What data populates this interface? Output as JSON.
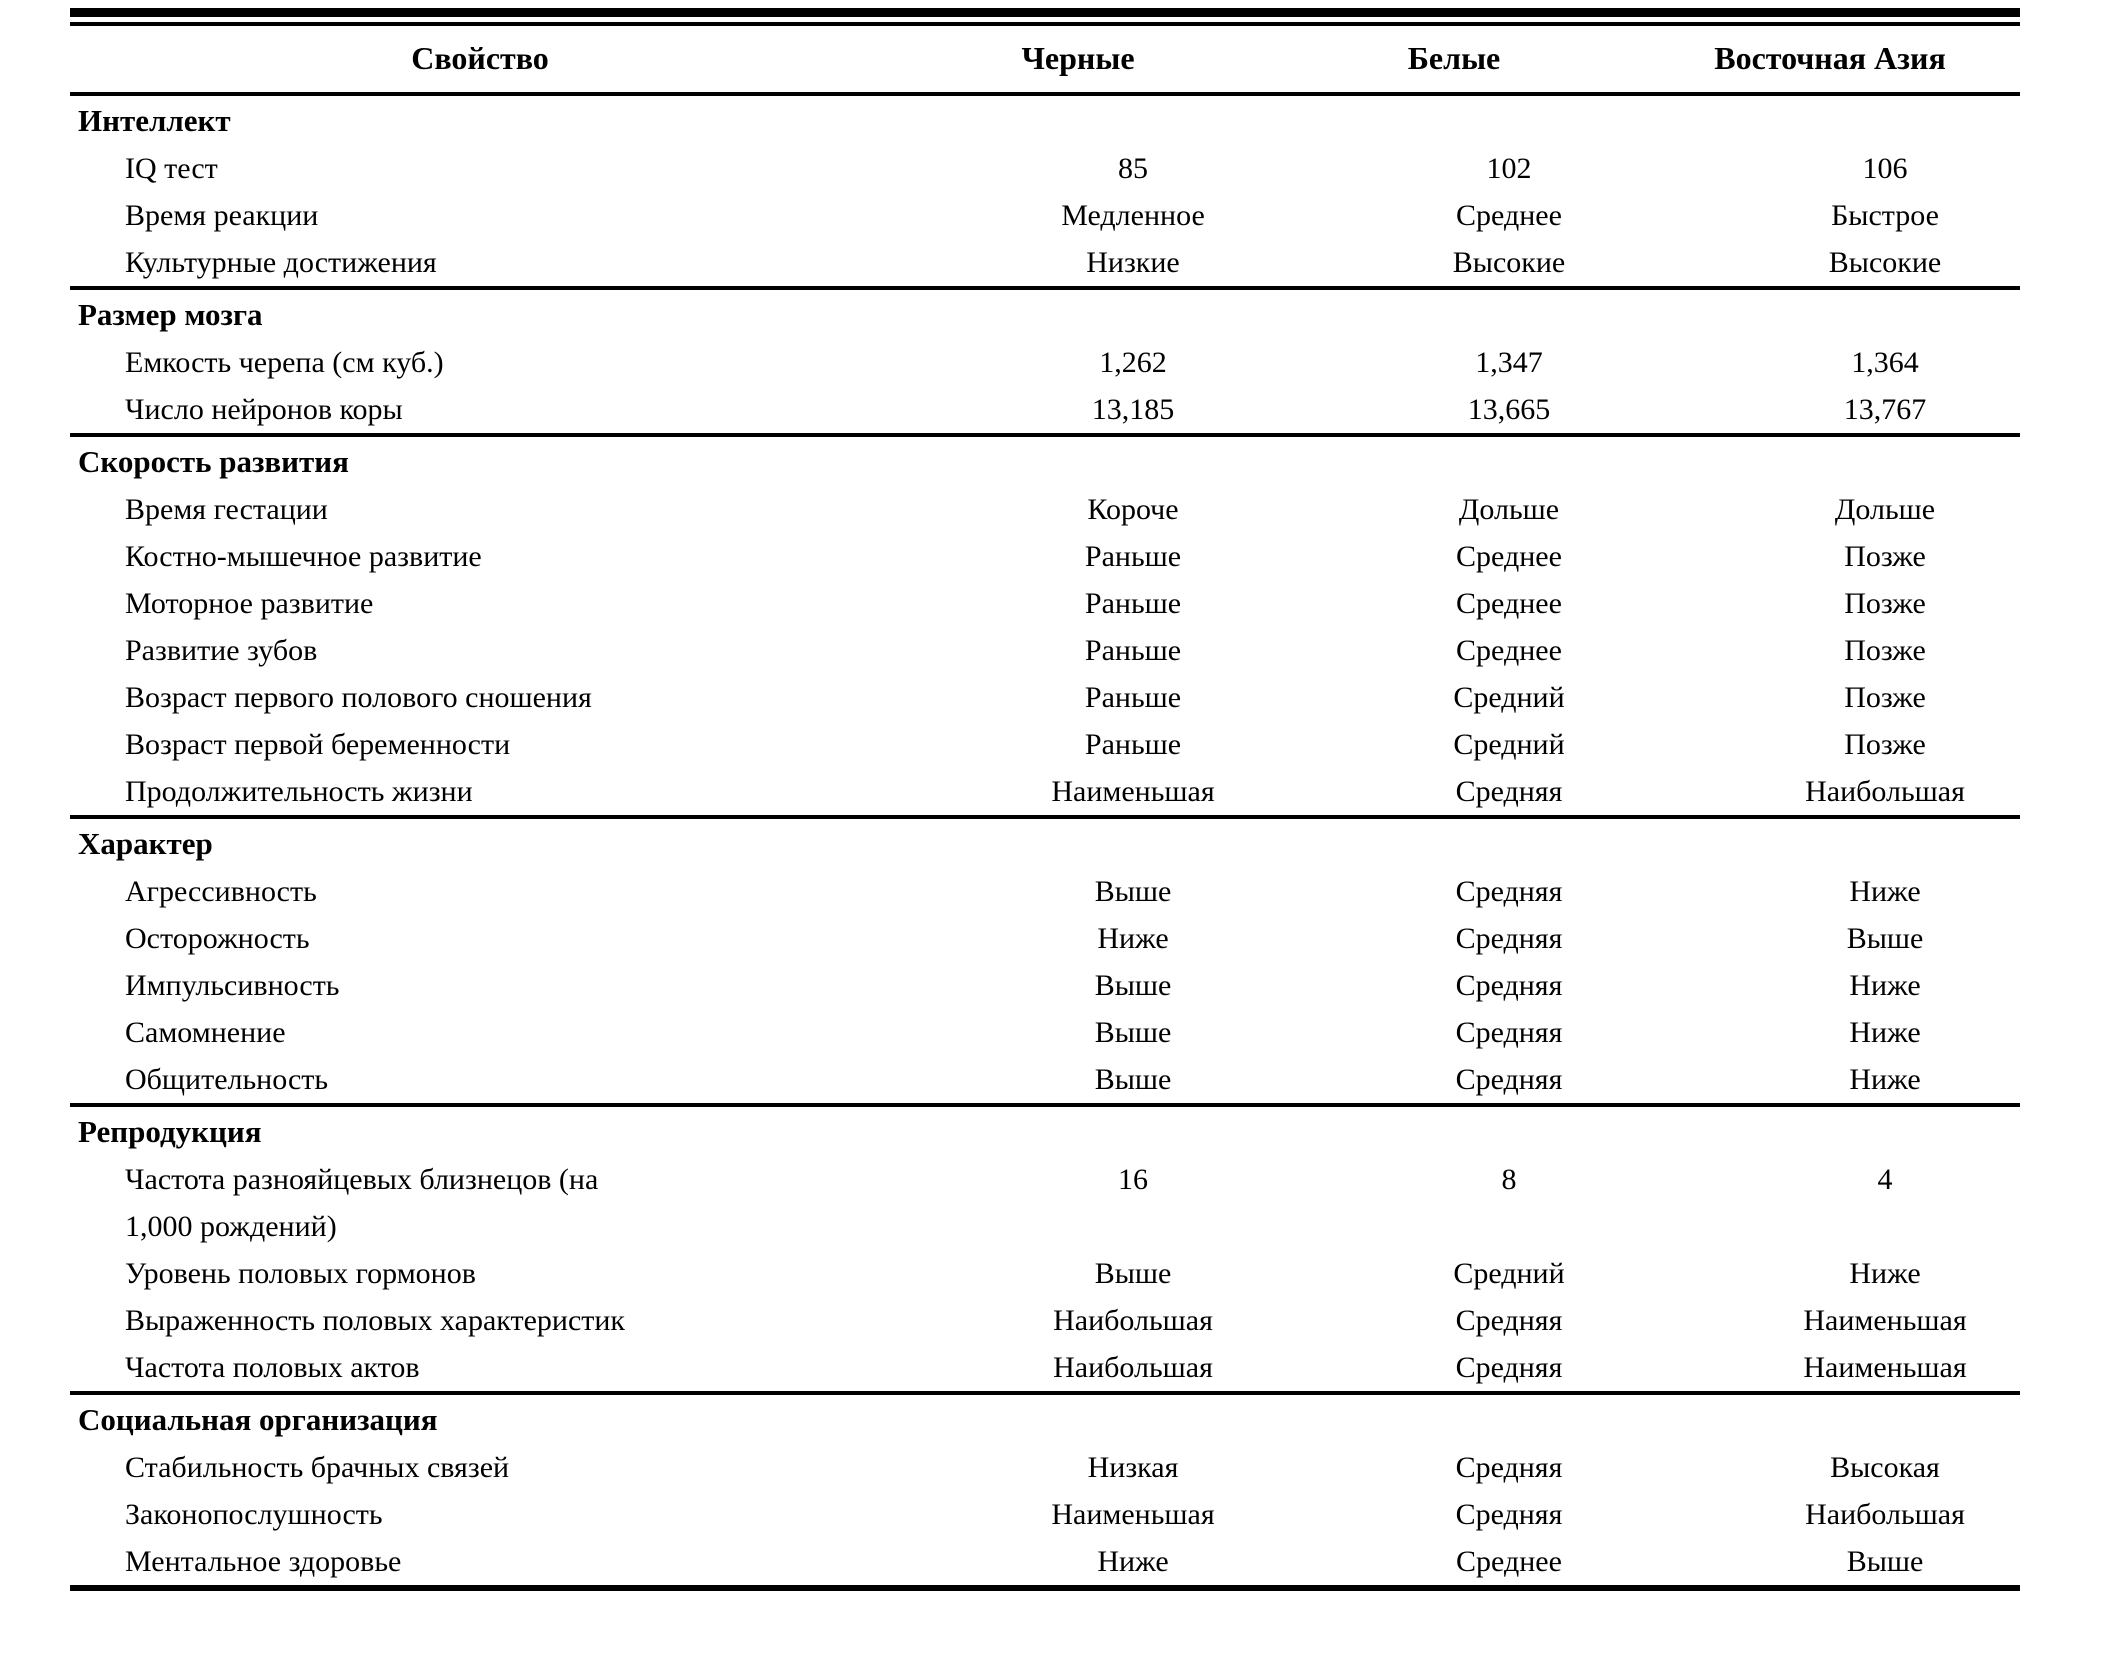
{
  "table": {
    "headers": [
      "Свойство",
      "Черные",
      "Белые",
      "Восточная Азия"
    ],
    "sections": [
      {
        "title": "Интеллект",
        "rows": [
          {
            "label": "IQ тест",
            "values": [
              "85",
              "102",
              "106"
            ]
          },
          {
            "label": "Время реакции",
            "values": [
              "Медленное",
              "Среднее",
              "Быстрое"
            ]
          },
          {
            "label": "Культурные достижения",
            "values": [
              "Низкие",
              "Высокие",
              "Высокие"
            ]
          }
        ]
      },
      {
        "title": "Размер мозга",
        "rows": [
          {
            "label": "Емкость черепа (см куб.)",
            "values": [
              "1,262",
              "1,347",
              "1,364"
            ]
          },
          {
            "label": "Число нейронов коры",
            "values": [
              "13,185",
              "13,665",
              "13,767"
            ]
          }
        ]
      },
      {
        "title": "Скорость развития",
        "rows": [
          {
            "label": "Время гестации",
            "values": [
              "Короче",
              "Дольше",
              "Дольше"
            ]
          },
          {
            "label": "Костно-мышечное развитие",
            "values": [
              "Раньше",
              "Среднее",
              "Позже"
            ]
          },
          {
            "label": "Моторное развитие",
            "values": [
              "Раньше",
              "Среднее",
              "Позже"
            ]
          },
          {
            "label": "Развитие зубов",
            "values": [
              "Раньше",
              "Среднее",
              "Позже"
            ]
          },
          {
            "label": "Возраст первого полового сношения",
            "values": [
              "Раньше",
              "Средний",
              "Позже"
            ]
          },
          {
            "label": "Возраст первой беременности",
            "values": [
              "Раньше",
              "Средний",
              "Позже"
            ]
          },
          {
            "label": "Продолжительность жизни",
            "values": [
              "Наименьшая",
              "Средняя",
              "Наибольшая"
            ]
          }
        ]
      },
      {
        "title": "Характер",
        "rows": [
          {
            "label": "Агрессивность",
            "values": [
              "Выше",
              "Средняя",
              "Ниже"
            ]
          },
          {
            "label": "Осторожность",
            "values": [
              "Ниже",
              "Средняя",
              "Выше"
            ]
          },
          {
            "label": "Импульсивность",
            "values": [
              "Выше",
              "Средняя",
              "Ниже"
            ]
          },
          {
            "label": "Самомнение",
            "values": [
              "Выше",
              "Средняя",
              "Ниже"
            ]
          },
          {
            "label": "Общительность",
            "values": [
              "Выше",
              "Средняя",
              "Ниже"
            ]
          }
        ]
      },
      {
        "title": "Репродукция",
        "rows": [
          {
            "label": "Частота разнояйцевых близнецов (на\n1,000 рождений)",
            "values": [
              "16",
              "8",
              "4"
            ]
          },
          {
            "label": "Уровень половых гормонов",
            "values": [
              "Выше",
              "Средний",
              "Ниже"
            ]
          },
          {
            "label": "Выраженность половых характеристик",
            "values": [
              "Наибольшая",
              "Средняя",
              "Наименьшая"
            ]
          },
          {
            "label": "Частота половых актов",
            "values": [
              "Наибольшая",
              "Средняя",
              "Наименьшая"
            ]
          }
        ]
      },
      {
        "title": "Социальная организация",
        "rows": [
          {
            "label": "Стабильность брачных связей",
            "values": [
              "Низкая",
              "Средняя",
              "Высокая"
            ]
          },
          {
            "label": "Законопослушность",
            "values": [
              "Наименьшая",
              "Средняя",
              "Наибольшая"
            ]
          },
          {
            "label": "Ментальное здоровье",
            "values": [
              "Ниже",
              "Среднее",
              "Выше"
            ]
          }
        ]
      }
    ]
  }
}
